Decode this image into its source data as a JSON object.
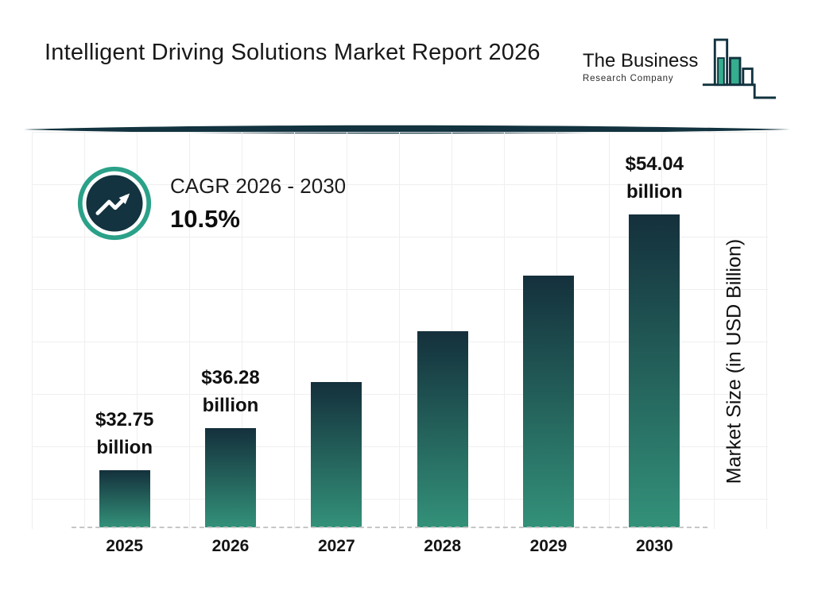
{
  "header": {
    "title": "Intelligent Driving Solutions Market Report 2026",
    "logo": {
      "line1": "The Business",
      "line2": "Research Company",
      "icon": "bar-chart-logo-icon"
    }
  },
  "cagr": {
    "label": "CAGR 2026 - 2030",
    "value": "10.5%",
    "icon": "trend-up-icon"
  },
  "chart_data": {
    "type": "bar",
    "title": "Intelligent Driving Solutions Market Report 2026",
    "categories": [
      "2025",
      "2026",
      "2027",
      "2028",
      "2029",
      "2030"
    ],
    "values": [
      32.75,
      36.28,
      40.09,
      44.3,
      48.95,
      54.04
    ],
    "label_lines": [
      [
        "$32.75",
        "billion"
      ],
      [
        "$36.28",
        "billion"
      ],
      null,
      null,
      null,
      [
        "$54.04",
        "billion"
      ]
    ],
    "xlabel": "",
    "ylabel": "Market Size (in USD Billion)",
    "ylim": [
      28,
      60
    ],
    "grid": true,
    "legend": "none",
    "bar_gradient": [
      "#14303c",
      "#339179"
    ]
  },
  "colors": {
    "accent_teal": "#2aa188",
    "dark_navy": "#12333f",
    "logo_teal": "#35ad8e",
    "grid": "#efefef",
    "baseline": "#c6c6c6"
  }
}
